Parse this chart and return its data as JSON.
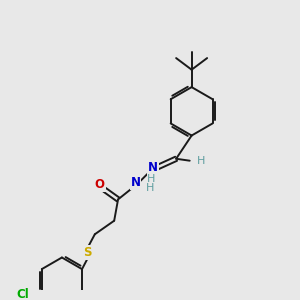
{
  "background_color": "#e8e8e8",
  "bond_color": "#1a1a1a",
  "atom_colors": {
    "N": "#0000cc",
    "O": "#cc0000",
    "S": "#ccaa00",
    "Cl": "#00aa00",
    "H": "#5f9ea0",
    "C": "#1a1a1a"
  },
  "figsize": [
    3.0,
    3.0
  ],
  "dpi": 100
}
